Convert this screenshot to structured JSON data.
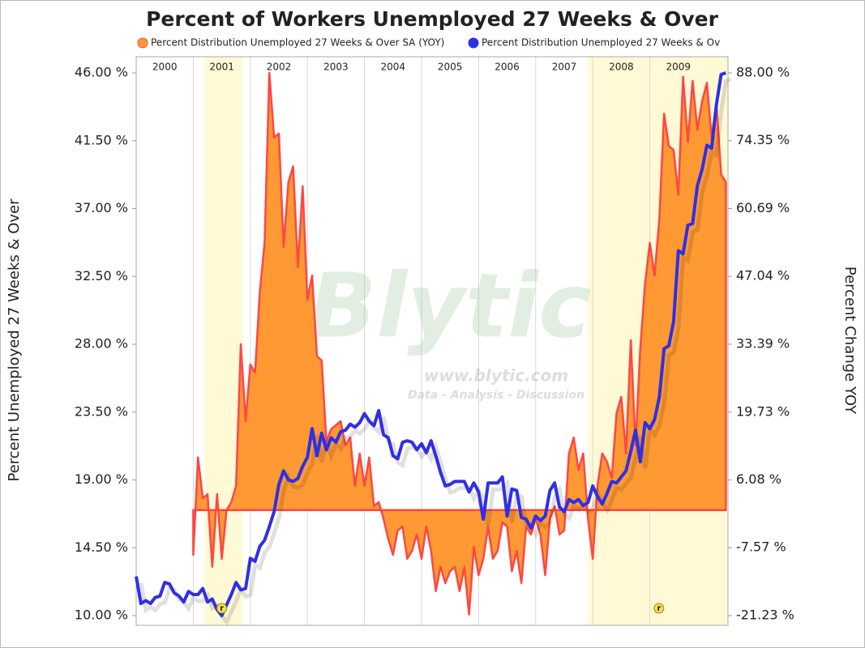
{
  "chart_data": {
    "type": "line",
    "title": "Percent of Workers Unemployed 27 Weeks & Over",
    "ylabel": "Percent Unemployed 27 Weeks & Over",
    "y2label": "Percent Change YOY",
    "watermark": {
      "title": "Blytic",
      "url": "www.blytic.com",
      "tagline": "Data - Analysis - Discussion"
    },
    "xlim": [
      2000,
      2010.37
    ],
    "xticks": [
      {
        "value": 2000,
        "label": "2000"
      },
      {
        "value": 2001,
        "label": "2001"
      },
      {
        "value": 2002,
        "label": "2002"
      },
      {
        "value": 2003,
        "label": "2003"
      },
      {
        "value": 2004,
        "label": "2004"
      },
      {
        "value": 2005,
        "label": "2005"
      },
      {
        "value": 2006,
        "label": "2006"
      },
      {
        "value": 2007,
        "label": "2007"
      },
      {
        "value": 2008,
        "label": "2008"
      },
      {
        "value": 2009,
        "label": "2009"
      }
    ],
    "ylim": [
      10,
      46
    ],
    "yticks": [
      {
        "value": 10,
        "label": "10.00 %"
      },
      {
        "value": 14.5,
        "label": "14.50 %"
      },
      {
        "value": 19,
        "label": "19.00 %"
      },
      {
        "value": 23.5,
        "label": "23.50 %"
      },
      {
        "value": 28,
        "label": "28.00 %"
      },
      {
        "value": 32.5,
        "label": "32.50 %"
      },
      {
        "value": 37,
        "label": "37.00 %"
      },
      {
        "value": 41.5,
        "label": "41.50 %"
      },
      {
        "value": 46,
        "label": "46.00 %"
      }
    ],
    "y2lim": [
      -21.23,
      88
    ],
    "y2ticks": [
      {
        "value": -21.23,
        "label": "-21.23 %"
      },
      {
        "value": -7.57,
        "label": "-7.57 %"
      },
      {
        "value": 6.08,
        "label": "6.08 %"
      },
      {
        "value": 19.73,
        "label": "19.73 %"
      },
      {
        "value": 33.39,
        "label": "33.39 %"
      },
      {
        "value": 47.04,
        "label": "47.04 %"
      },
      {
        "value": 60.69,
        "label": "60.69 %"
      },
      {
        "value": 74.35,
        "label": "74.35 %"
      },
      {
        "value": 88,
        "label": "88.00 %"
      }
    ],
    "recessions": [
      {
        "start": 2001.2,
        "end": 2001.87,
        "at": 2001.5,
        "label": "r"
      },
      {
        "start": 2007.92,
        "end": 2010.37,
        "at": 2009.16,
        "label": "r"
      }
    ],
    "x": [
      2000,
      2000.083,
      2000.167,
      2000.25,
      2000.333,
      2000.417,
      2000.5,
      2000.583,
      2000.667,
      2000.75,
      2000.833,
      2000.917,
      2001,
      2001.083,
      2001.167,
      2001.25,
      2001.333,
      2001.417,
      2001.5,
      2001.583,
      2001.667,
      2001.75,
      2001.833,
      2001.917,
      2002,
      2002.083,
      2002.167,
      2002.25,
      2002.333,
      2002.417,
      2002.5,
      2002.583,
      2002.667,
      2002.75,
      2002.833,
      2002.917,
      2003,
      2003.083,
      2003.167,
      2003.25,
      2003.333,
      2003.417,
      2003.5,
      2003.583,
      2003.667,
      2003.75,
      2003.833,
      2003.917,
      2004,
      2004.083,
      2004.167,
      2004.25,
      2004.333,
      2004.417,
      2004.5,
      2004.583,
      2004.667,
      2004.75,
      2004.833,
      2004.917,
      2005,
      2005.083,
      2005.167,
      2005.25,
      2005.333,
      2005.417,
      2005.5,
      2005.583,
      2005.667,
      2005.75,
      2005.833,
      2005.917,
      2006,
      2006.083,
      2006.167,
      2006.25,
      2006.333,
      2006.417,
      2006.5,
      2006.583,
      2006.667,
      2006.75,
      2006.833,
      2006.917,
      2007,
      2007.083,
      2007.167,
      2007.25,
      2007.333,
      2007.417,
      2007.5,
      2007.583,
      2007.667,
      2007.75,
      2007.833,
      2007.917,
      2008,
      2008.083,
      2008.167,
      2008.25,
      2008.333,
      2008.417,
      2008.5,
      2008.583,
      2008.667,
      2008.75,
      2008.833,
      2008.917,
      2009,
      2009.083,
      2009.167,
      2009.25,
      2009.333,
      2009.417,
      2009.5,
      2009.583,
      2009.667,
      2009.75,
      2009.833,
      2009.917,
      2010,
      2010.083,
      2010.167,
      2010.25,
      2010.333
    ],
    "series": [
      {
        "name": "Percent Distribution Unemployed 27 Weeks & Over SA (YOY)",
        "color": "#ff9933",
        "line_color": "#ff4646",
        "axis": "y2",
        "values": [
          null,
          null,
          null,
          null,
          null,
          null,
          null,
          null,
          null,
          null,
          null,
          null,
          -9.0,
          10.6,
          2.4,
          3.2,
          -11.4,
          3.2,
          -9.8,
          0.0,
          1.6,
          4.9,
          33.4,
          17.9,
          29.3,
          27.7,
          44.0,
          53.8,
          88.0,
          75.0,
          75.8,
          53.0,
          66.0,
          69.2,
          48.9,
          65.2,
          42.3,
          47.2,
          31.0,
          30.1,
          13.8,
          16.3,
          17.1,
          17.9,
          13.0,
          14.6,
          4.9,
          11.4,
          4.9,
          10.6,
          0.8,
          1.6,
          -1.7,
          -5.8,
          -9.0,
          -4.1,
          -3.3,
          -9.8,
          -8.2,
          -4.9,
          -9.8,
          -3.3,
          -8.2,
          -16.3,
          -11.4,
          -14.7,
          -12.3,
          -11.4,
          -16.3,
          -11.4,
          -21.0,
          -7.4,
          -13.1,
          -9.8,
          -3.3,
          -9.8,
          -8.2,
          -2.5,
          -3.3,
          -12.3,
          -8.2,
          -14.7,
          -3.3,
          -4.9,
          -1.7,
          -4.9,
          -13.1,
          -1.7,
          0.8,
          -4.9,
          -4.1,
          11.4,
          14.6,
          8.1,
          11.4,
          -1.7,
          -9.8,
          4.9,
          11.4,
          9.7,
          6.5,
          19.5,
          22.8,
          11.4,
          34.2,
          13.0,
          32.6,
          45.6,
          53.8,
          47.2,
          58.6,
          79.8,
          73.3,
          72.5,
          63.5,
          87.2,
          74.1,
          86.4,
          76.6,
          82.3,
          86.0,
          75.0,
          82.0,
          67.6,
          66.0
        ]
      },
      {
        "name": "Percent Distribution Unemployed 27 Weeks & Ov",
        "color": "#2f2fe6",
        "values": [
          12.6,
          10.8,
          11.0,
          10.8,
          11.2,
          11.3,
          12.2,
          12.1,
          11.5,
          11.3,
          10.9,
          11.6,
          11.4,
          11.4,
          11.8,
          10.9,
          11.1,
          10.4,
          10.0,
          10.7,
          11.4,
          12.2,
          11.7,
          11.8,
          13.8,
          13.6,
          14.6,
          15.0,
          15.9,
          16.9,
          18.7,
          19.6,
          19.0,
          18.9,
          19.1,
          19.9,
          20.5,
          22.4,
          20.6,
          22.1,
          21.0,
          21.8,
          21.5,
          22.2,
          22.3,
          22.7,
          22.5,
          22.8,
          23.4,
          22.9,
          22.6,
          23.6,
          22.0,
          21.8,
          20.6,
          20.4,
          21.5,
          21.6,
          21.5,
          21.0,
          21.4,
          20.8,
          21.6,
          20.6,
          19.5,
          18.6,
          18.7,
          18.9,
          18.9,
          18.9,
          18.2,
          18.8,
          18.2,
          16.4,
          18.8,
          18.8,
          18.8,
          19.2,
          16.6,
          18.4,
          18.3,
          16.5,
          16.4,
          15.8,
          16.6,
          16.3,
          16.6,
          18.3,
          18.8,
          17.2,
          16.9,
          17.7,
          17.5,
          17.7,
          17.3,
          17.5,
          18.6,
          17.9,
          17.4,
          18.1,
          18.9,
          18.8,
          19.2,
          19.6,
          20.9,
          22.3,
          20.2,
          22.8,
          22.4,
          23.0,
          24.5,
          27.7,
          27.9,
          29.5,
          34.2,
          34.0,
          35.9,
          36.0,
          38.5,
          39.6,
          41.2,
          41.0,
          43.9,
          45.9,
          46.0
        ]
      }
    ]
  }
}
